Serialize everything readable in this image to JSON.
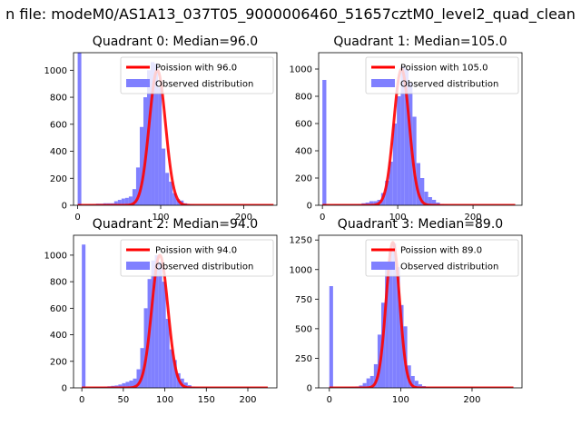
{
  "figure": {
    "suptitle": "n file: modeM0/AS1A13_037T05_9000006460_51657cztM0_level2_quad_clean"
  },
  "colors": {
    "observed": "#8080ff",
    "poisson": "#ff0000"
  },
  "chart_data": [
    {
      "type": "bar",
      "title": "Quadrant 0: Median=96.0",
      "xlim": [
        -5,
        240
      ],
      "ylim": [
        0,
        1130
      ],
      "xticks": [
        0,
        100,
        200
      ],
      "yticks": [
        0,
        200,
        400,
        600,
        800,
        1000
      ],
      "grid": false,
      "legend": {
        "placement": "top-right",
        "entries": [
          "Poission with 96.0",
          "Observed distribution"
        ]
      },
      "series": [
        {
          "name": "Observed distribution",
          "kind": "histogram",
          "bin_width": 4.4,
          "bins": [
            0,
            4.4,
            8.8,
            13.2,
            17.6,
            22,
            26.4,
            30.8,
            35.2,
            39.6,
            44,
            48.4,
            52.8,
            57.2,
            61.6,
            66,
            70.4,
            74.8,
            79.2,
            83.6,
            88,
            92.4,
            96.8,
            101.2,
            105.6,
            110,
            114.4,
            118.8,
            123.2,
            127.6,
            132,
            136.4,
            140.8,
            145.2,
            149.6,
            154,
            158.4,
            162.8,
            167.2,
            171.6,
            176,
            180.4,
            184.8,
            189.2,
            193.6,
            198,
            202.4,
            206.8,
            211.2,
            215.6,
            220
          ],
          "counts": [
            1130,
            0,
            5,
            8,
            10,
            12,
            12,
            15,
            15,
            15,
            30,
            40,
            50,
            55,
            65,
            120,
            280,
            580,
            800,
            1000,
            1060,
            1050,
            870,
            420,
            240,
            175,
            90,
            45,
            35,
            15,
            10,
            5,
            3,
            2,
            1,
            1,
            0,
            0,
            0,
            0,
            0,
            0,
            0,
            0,
            0,
            0,
            0,
            0,
            0,
            0,
            0
          ]
        },
        {
          "name": "Poission with 96.0",
          "kind": "poisson_curve",
          "mean": 96.0,
          "peak": 1000,
          "x_range": [
            0,
            236
          ]
        }
      ]
    },
    {
      "type": "bar",
      "title": "Quadrant 1: Median=105.0",
      "xlim": [
        -5,
        265
      ],
      "ylim": [
        0,
        1120
      ],
      "xticks": [
        0,
        100,
        200
      ],
      "yticks": [
        0,
        200,
        400,
        600,
        800,
        1000
      ],
      "grid": false,
      "legend": {
        "placement": "top-right",
        "entries": [
          "Poission with 105.0",
          "Observed distribution"
        ]
      },
      "series": [
        {
          "name": "Observed distribution",
          "kind": "histogram",
          "bin_width": 5.2,
          "bins": [
            0,
            5.2,
            10.4,
            15.6,
            20.8,
            26,
            31.2,
            36.4,
            41.6,
            46.8,
            52,
            57.2,
            62.4,
            67.6,
            72.8,
            78,
            83.2,
            88.4,
            93.6,
            98.8,
            104,
            109.2,
            114.4,
            119.6,
            124.8,
            130,
            135.2,
            140.4,
            145.6,
            150.8,
            156,
            161.2,
            166.4,
            171.6,
            176.8,
            182,
            187.2,
            192.4,
            197.6,
            202.8,
            208,
            213.2,
            218.4,
            223.6,
            228.8,
            234,
            239.2,
            244.4,
            249.6,
            254.8
          ],
          "counts": [
            920,
            0,
            3,
            5,
            5,
            5,
            5,
            8,
            8,
            10,
            15,
            20,
            30,
            30,
            40,
            90,
            180,
            320,
            600,
            800,
            1020,
            1000,
            900,
            650,
            310,
            200,
            100,
            60,
            40,
            20,
            10,
            5,
            3,
            2,
            1,
            1,
            0,
            0,
            0,
            0,
            0,
            0,
            0,
            0,
            0,
            0,
            0,
            0,
            0,
            0
          ]
        },
        {
          "name": "Poission with 105.0",
          "kind": "poisson_curve",
          "mean": 105.0,
          "peak": 1000,
          "x_range": [
            0,
            256
          ]
        }
      ]
    },
    {
      "type": "bar",
      "title": "Quadrant 2: Median=94.0",
      "xlim": [
        -10,
        235
      ],
      "ylim": [
        0,
        1150
      ],
      "xticks": [
        0,
        50,
        100,
        150,
        200
      ],
      "yticks": [
        0,
        200,
        400,
        600,
        800,
        1000
      ],
      "grid": false,
      "legend": {
        "placement": "top-right",
        "entries": [
          "Poission with 94.0",
          "Observed distribution"
        ]
      },
      "series": [
        {
          "name": "Observed distribution",
          "kind": "histogram",
          "bin_width": 4.4,
          "bins": [
            0,
            4.4,
            8.8,
            13.2,
            17.6,
            22,
            26.4,
            30.8,
            35.2,
            39.6,
            44,
            48.4,
            52.8,
            57.2,
            61.6,
            66,
            70.4,
            74.8,
            79.2,
            83.6,
            88,
            92.4,
            96.8,
            101.2,
            105.6,
            110,
            114.4,
            118.8,
            123.2,
            127.6,
            132,
            136.4,
            140.8,
            145.2,
            149.6,
            154,
            158.4,
            162.8,
            167.2,
            171.6,
            176,
            180.4,
            184.8,
            189.2,
            193.6,
            198,
            202.4,
            206.8,
            211.2,
            215.6,
            220
          ],
          "counts": [
            1080,
            0,
            3,
            5,
            6,
            8,
            10,
            12,
            15,
            18,
            25,
            35,
            45,
            55,
            70,
            140,
            300,
            600,
            820,
            960,
            1000,
            950,
            800,
            520,
            290,
            210,
            110,
            70,
            40,
            20,
            10,
            6,
            3,
            2,
            1,
            1,
            0,
            0,
            0,
            0,
            0,
            0,
            0,
            0,
            0,
            0,
            0,
            0,
            0,
            0,
            0
          ]
        },
        {
          "name": "Poission with 94.0",
          "kind": "poisson_curve",
          "mean": 94.0,
          "peak": 1000,
          "x_range": [
            0,
            224
          ]
        }
      ]
    },
    {
      "type": "bar",
      "title": "Quadrant 3: Median=89.0",
      "xlim": [
        -15,
        270
      ],
      "ylim": [
        0,
        1290
      ],
      "xticks": [
        0,
        100,
        200
      ],
      "yticks": [
        0,
        250,
        500,
        750,
        1000,
        1250
      ],
      "grid": false,
      "legend": {
        "placement": "top-right",
        "entries": [
          "Poission with 89.0",
          "Observed distribution"
        ]
      },
      "series": [
        {
          "name": "Observed distribution",
          "kind": "histogram",
          "bin_width": 5.2,
          "bins": [
            0,
            5.2,
            10.4,
            15.6,
            20.8,
            26,
            31.2,
            36.4,
            41.6,
            46.8,
            52,
            57.2,
            62.4,
            67.6,
            72.8,
            78,
            83.2,
            88.4,
            93.6,
            98.8,
            104,
            109.2,
            114.4,
            119.6,
            124.8,
            130,
            135.2,
            140.4,
            145.6,
            150.8,
            156,
            161.2,
            166.4,
            171.6,
            176.8,
            182,
            187.2,
            192.4,
            197.6,
            202.8,
            208,
            213.2,
            218.4,
            223.6,
            228.8,
            234,
            239.2,
            244.4,
            249.6,
            254.8
          ],
          "counts": [
            860,
            0,
            3,
            5,
            6,
            8,
            10,
            12,
            20,
            40,
            80,
            100,
            200,
            450,
            720,
            1000,
            1180,
            1220,
            1020,
            700,
            520,
            190,
            100,
            60,
            30,
            15,
            8,
            4,
            2,
            1,
            1,
            0,
            0,
            0,
            0,
            0,
            0,
            0,
            0,
            0,
            0,
            0,
            0,
            0,
            0,
            0,
            0,
            0,
            0,
            0
          ]
        },
        {
          "name": "Poission with 89.0",
          "kind": "poisson_curve",
          "mean": 89.0,
          "peak": 1230,
          "x_range": [
            0,
            258
          ]
        }
      ]
    }
  ]
}
